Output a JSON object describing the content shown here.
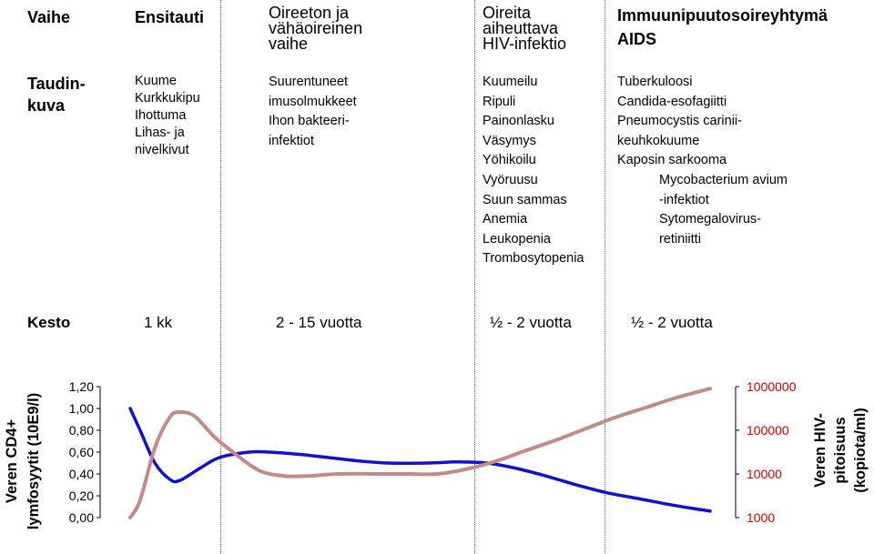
{
  "header": {
    "phase_label": "Vaihe",
    "columns": [
      [
        "Ensitauti"
      ],
      [
        "Oireeton ja",
        "vähäoireinen",
        "vaihe"
      ],
      [
        "Oireita",
        "aiheuttava",
        "HIV-infektio"
      ],
      [
        "Immuunipuutosoireyhtymä",
        "AIDS"
      ]
    ]
  },
  "disease_picture": {
    "label": [
      "Taudin-",
      "kuva"
    ],
    "col1": [
      "Kuume",
      "Kurkkukipu",
      "Ihottuma",
      "Lihas- ja",
      "nivelkivut"
    ],
    "col2": [
      "Suurentuneet",
      "imusolmukkeet",
      "Ihon bakteeri-",
      "infektiot"
    ],
    "col3": [
      "Kuumeilu",
      "Ripuli",
      "Painonlasku",
      "Väsymys",
      "Yöhikoilu",
      "Vyöruusu",
      "Suun sammas",
      "Anemia",
      "Leukopenia",
      "Trombosytopenia"
    ],
    "col4": [
      "Tuberkuloosi",
      "Candida-esofagiitti",
      "Pneumocystis carinii-",
      "keuhkokuume",
      "Kaposin sarkooma"
    ],
    "col4_indented": [
      "Mycobacterium avium",
      "-infektiot",
      "Sytomegalovirus-",
      "retiniitti"
    ]
  },
  "duration": {
    "label": "Kesto",
    "values": [
      "1 kk",
      "2 - 15 vuotta",
      "½ - 2 vuotta",
      "½ - 2 vuotta"
    ]
  },
  "chart_data": {
    "type": "line",
    "left_axis": {
      "label": [
        "Veren CD4+",
        "lymfosyytit (10E9/l)"
      ],
      "ticks": [
        "1,20",
        "1,00",
        "0,80",
        "0,60",
        "0,40",
        "0,20",
        "0,00"
      ],
      "range": [
        0,
        1.2
      ]
    },
    "right_axis": {
      "label": [
        "Veren HIV-",
        "pitoisuus",
        "(kopiota/ml)"
      ],
      "ticks": [
        "1000000",
        "100000",
        "10000",
        "1000"
      ],
      "range": [
        1000,
        1000000
      ],
      "scale": "log"
    },
    "series": [
      {
        "color": "#1010d0",
        "axis": "left",
        "points": [
          [
            0,
            1.0
          ],
          [
            0.02,
            0.8
          ],
          [
            0.05,
            0.5
          ],
          [
            0.08,
            0.35
          ],
          [
            0.1,
            0.34
          ],
          [
            0.14,
            0.45
          ],
          [
            0.18,
            0.55
          ],
          [
            0.24,
            0.6
          ],
          [
            0.28,
            0.6
          ],
          [
            0.34,
            0.58
          ],
          [
            0.4,
            0.55
          ],
          [
            0.46,
            0.52
          ],
          [
            0.52,
            0.5
          ],
          [
            0.6,
            0.5
          ],
          [
            0.66,
            0.51
          ],
          [
            0.72,
            0.5
          ],
          [
            0.78,
            0.45
          ],
          [
            0.84,
            0.38
          ],
          [
            0.9,
            0.3
          ],
          [
            0.96,
            0.23
          ],
          [
            1.03,
            0.17
          ],
          [
            1.1,
            0.11
          ],
          [
            1.17,
            0.06
          ]
        ]
      },
      {
        "color": "#c48a86",
        "axis": "right",
        "points": [
          [
            0,
            1000
          ],
          [
            0.02,
            2500
          ],
          [
            0.05,
            40000
          ],
          [
            0.08,
            200000
          ],
          [
            0.1,
            260000
          ],
          [
            0.13,
            210000
          ],
          [
            0.17,
            70000
          ],
          [
            0.21,
            30000
          ],
          [
            0.26,
            12000
          ],
          [
            0.31,
            9000
          ],
          [
            0.36,
            9000
          ],
          [
            0.42,
            10000
          ],
          [
            0.5,
            10000
          ],
          [
            0.56,
            10000
          ],
          [
            0.62,
            10000
          ],
          [
            0.68,
            13000
          ],
          [
            0.74,
            20000
          ],
          [
            0.8,
            35000
          ],
          [
            0.86,
            60000
          ],
          [
            0.92,
            110000
          ],
          [
            0.98,
            200000
          ],
          [
            1.04,
            330000
          ],
          [
            1.1,
            550000
          ],
          [
            1.17,
            900000
          ]
        ]
      }
    ]
  }
}
